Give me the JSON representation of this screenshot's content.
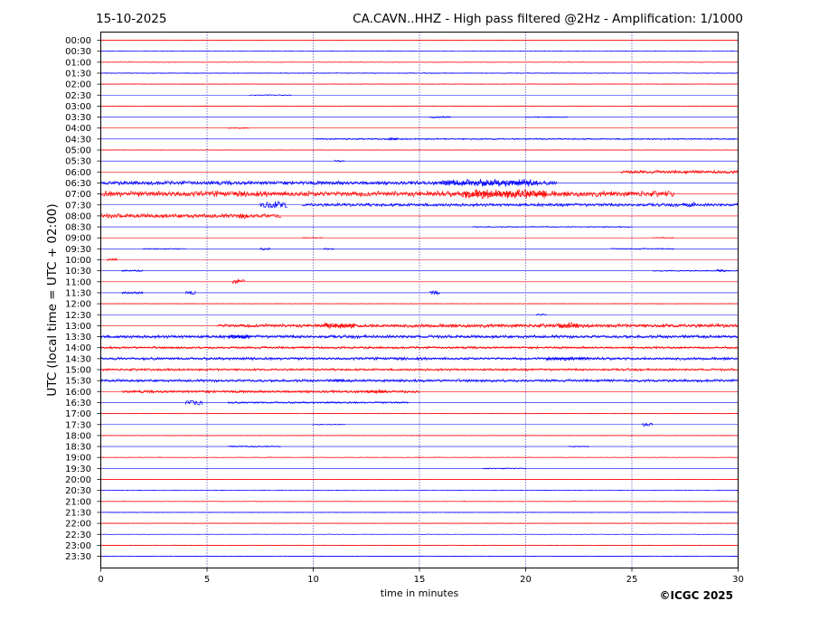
{
  "header": {
    "date": "15-10-2025",
    "title": "CA.CAVN..HHZ - High pass filtered @2Hz - Amplification: 1/1000"
  },
  "footer": {
    "credit": "©ICGC 2025"
  },
  "colors": {
    "even_trace": "#ff0000",
    "odd_trace": "#0000ff",
    "grid": "#00008b",
    "axes": "#000000"
  },
  "chart_data": {
    "type": "helicorder",
    "xlabel": "time in minutes",
    "ylabel": "UTC (local time = UTC + 02:00)",
    "x_ticks": [
      0,
      5,
      10,
      15,
      20,
      25,
      30
    ],
    "xlim": [
      0,
      30
    ],
    "grid": "vertical dotted lines at 5, 10, 15, 20, 25 min",
    "rows": [
      {
        "label": "00:00",
        "activity": [
          {
            "start": 0,
            "end": 30,
            "amp": 0.05
          }
        ]
      },
      {
        "label": "00:30",
        "activity": [
          {
            "start": 0,
            "end": 30,
            "amp": 0.05
          }
        ]
      },
      {
        "label": "01:00",
        "activity": [
          {
            "start": 0,
            "end": 30,
            "amp": 0.05
          }
        ]
      },
      {
        "label": "01:30",
        "activity": [
          {
            "start": 0,
            "end": 30,
            "amp": 0.08
          }
        ]
      },
      {
        "label": "02:00",
        "activity": [
          {
            "start": 0,
            "end": 30,
            "amp": 0.05
          }
        ]
      },
      {
        "label": "02:30",
        "activity": [
          {
            "start": 7,
            "end": 9,
            "amp": 0.1
          }
        ]
      },
      {
        "label": "03:00",
        "activity": [
          {
            "start": 0,
            "end": 30,
            "amp": 0.05
          }
        ]
      },
      {
        "label": "03:30",
        "activity": [
          {
            "start": 15.5,
            "end": 16.5,
            "amp": 0.2
          },
          {
            "start": 20,
            "end": 22,
            "amp": 0.1
          }
        ]
      },
      {
        "label": "04:00",
        "activity": [
          {
            "start": 6,
            "end": 7,
            "amp": 0.1
          }
        ]
      },
      {
        "label": "04:30",
        "activity": [
          {
            "start": 10,
            "end": 30,
            "amp": 0.15
          },
          {
            "start": 13.5,
            "end": 14,
            "amp": 0.3
          }
        ]
      },
      {
        "label": "05:00",
        "activity": [
          {
            "start": 0,
            "end": 30,
            "amp": 0.05
          }
        ]
      },
      {
        "label": "05:30",
        "activity": [
          {
            "start": 11,
            "end": 11.5,
            "amp": 0.2
          }
        ]
      },
      {
        "label": "06:00",
        "activity": [
          {
            "start": 24.5,
            "end": 30,
            "amp": 0.35
          }
        ]
      },
      {
        "label": "06:30",
        "activity": [
          {
            "start": 0,
            "end": 21.5,
            "amp": 0.45
          },
          {
            "start": 16,
            "end": 20.5,
            "amp": 0.8
          }
        ]
      },
      {
        "label": "07:00",
        "activity": [
          {
            "start": 0,
            "end": 27,
            "amp": 0.6
          },
          {
            "start": 17,
            "end": 21,
            "amp": 1.0
          }
        ]
      },
      {
        "label": "07:30",
        "activity": [
          {
            "start": 7.5,
            "end": 8.8,
            "amp": 0.8
          },
          {
            "start": 9.5,
            "end": 30,
            "amp": 0.35
          },
          {
            "start": 27.5,
            "end": 28,
            "amp": 0.6
          }
        ]
      },
      {
        "label": "08:00",
        "activity": [
          {
            "start": 0,
            "end": 8.5,
            "amp": 0.45
          },
          {
            "start": 6.5,
            "end": 7,
            "amp": 0.6
          }
        ]
      },
      {
        "label": "08:30",
        "activity": [
          {
            "start": 17.5,
            "end": 25,
            "amp": 0.12
          }
        ]
      },
      {
        "label": "09:00",
        "activity": [
          {
            "start": 9.5,
            "end": 10.5,
            "amp": 0.1
          },
          {
            "start": 26,
            "end": 27,
            "amp": 0.1
          }
        ]
      },
      {
        "label": "09:30",
        "activity": [
          {
            "start": 2,
            "end": 4,
            "amp": 0.12
          },
          {
            "start": 7.5,
            "end": 8,
            "amp": 0.3
          },
          {
            "start": 10.5,
            "end": 11,
            "amp": 0.2
          },
          {
            "start": 24,
            "end": 27,
            "amp": 0.12
          }
        ]
      },
      {
        "label": "10:00",
        "activity": [
          {
            "start": 0.3,
            "end": 0.8,
            "amp": 0.3
          }
        ]
      },
      {
        "label": "10:30",
        "activity": [
          {
            "start": 1,
            "end": 2,
            "amp": 0.2
          },
          {
            "start": 26,
            "end": 30,
            "amp": 0.12
          },
          {
            "start": 29,
            "end": 29.5,
            "amp": 0.3
          }
        ]
      },
      {
        "label": "11:00",
        "activity": [
          {
            "start": 6.2,
            "end": 6.8,
            "amp": 0.5
          }
        ]
      },
      {
        "label": "11:30",
        "activity": [
          {
            "start": 1,
            "end": 2,
            "amp": 0.3
          },
          {
            "start": 4,
            "end": 4.5,
            "amp": 0.4
          },
          {
            "start": 15.5,
            "end": 16,
            "amp": 0.4
          }
        ]
      },
      {
        "label": "12:00",
        "activity": [
          {
            "start": 0,
            "end": 30,
            "amp": 0.05
          }
        ]
      },
      {
        "label": "12:30",
        "activity": [
          {
            "start": 20.5,
            "end": 21,
            "amp": 0.2
          }
        ]
      },
      {
        "label": "13:00",
        "activity": [
          {
            "start": 5.5,
            "end": 30,
            "amp": 0.4
          },
          {
            "start": 10.5,
            "end": 12,
            "amp": 0.6
          },
          {
            "start": 21.5,
            "end": 22.5,
            "amp": 0.7
          }
        ]
      },
      {
        "label": "13:30",
        "activity": [
          {
            "start": 0,
            "end": 30,
            "amp": 0.35
          },
          {
            "start": 6,
            "end": 7,
            "amp": 0.5
          }
        ]
      },
      {
        "label": "14:00",
        "activity": [
          {
            "start": 0,
            "end": 30,
            "amp": 0.25
          }
        ]
      },
      {
        "label": "14:30",
        "activity": [
          {
            "start": 0,
            "end": 30,
            "amp": 0.3
          },
          {
            "start": 21,
            "end": 23,
            "amp": 0.4
          }
        ]
      },
      {
        "label": "15:00",
        "activity": [
          {
            "start": 0,
            "end": 30,
            "amp": 0.25
          }
        ]
      },
      {
        "label": "15:30",
        "activity": [
          {
            "start": 0,
            "end": 30,
            "amp": 0.3
          },
          {
            "start": 11,
            "end": 11.5,
            "amp": 0.4
          }
        ]
      },
      {
        "label": "16:00",
        "activity": [
          {
            "start": 1,
            "end": 15,
            "amp": 0.3
          },
          {
            "start": 12.5,
            "end": 13.5,
            "amp": 0.4
          }
        ]
      },
      {
        "label": "16:30",
        "activity": [
          {
            "start": 4,
            "end": 4.8,
            "amp": 0.7
          },
          {
            "start": 6,
            "end": 14.5,
            "amp": 0.2
          }
        ]
      },
      {
        "label": "17:00",
        "activity": [
          {
            "start": 0,
            "end": 30,
            "amp": 0.05
          }
        ]
      },
      {
        "label": "17:30",
        "activity": [
          {
            "start": 10,
            "end": 11.5,
            "amp": 0.1
          },
          {
            "start": 25.5,
            "end": 26,
            "amp": 0.4
          }
        ]
      },
      {
        "label": "18:00",
        "activity": [
          {
            "start": 0,
            "end": 30,
            "amp": 0.05
          }
        ]
      },
      {
        "label": "18:30",
        "activity": [
          {
            "start": 6,
            "end": 8.5,
            "amp": 0.15
          },
          {
            "start": 22,
            "end": 23,
            "amp": 0.12
          }
        ]
      },
      {
        "label": "19:00",
        "activity": [
          {
            "start": 0,
            "end": 30,
            "amp": 0.05
          }
        ]
      },
      {
        "label": "19:30",
        "activity": [
          {
            "start": 18,
            "end": 20,
            "amp": 0.12
          }
        ]
      },
      {
        "label": "20:00",
        "activity": [
          {
            "start": 0,
            "end": 30,
            "amp": 0.05
          }
        ]
      },
      {
        "label": "20:30",
        "activity": [
          {
            "start": 0,
            "end": 30,
            "amp": 0.05
          }
        ]
      },
      {
        "label": "21:00",
        "activity": [
          {
            "start": 0,
            "end": 30,
            "amp": 0.05
          }
        ]
      },
      {
        "label": "21:30",
        "activity": [
          {
            "start": 0,
            "end": 30,
            "amp": 0.05
          }
        ]
      },
      {
        "label": "22:00",
        "activity": [
          {
            "start": 0,
            "end": 30,
            "amp": 0.05
          }
        ]
      },
      {
        "label": "22:30",
        "activity": [
          {
            "start": 0,
            "end": 30,
            "amp": 0.05
          }
        ]
      },
      {
        "label": "23:00",
        "activity": [
          {
            "start": 0,
            "end": 30,
            "amp": 0.05
          }
        ]
      },
      {
        "label": "23:30",
        "activity": [
          {
            "start": 0,
            "end": 30,
            "amp": 0.05
          }
        ]
      }
    ]
  }
}
